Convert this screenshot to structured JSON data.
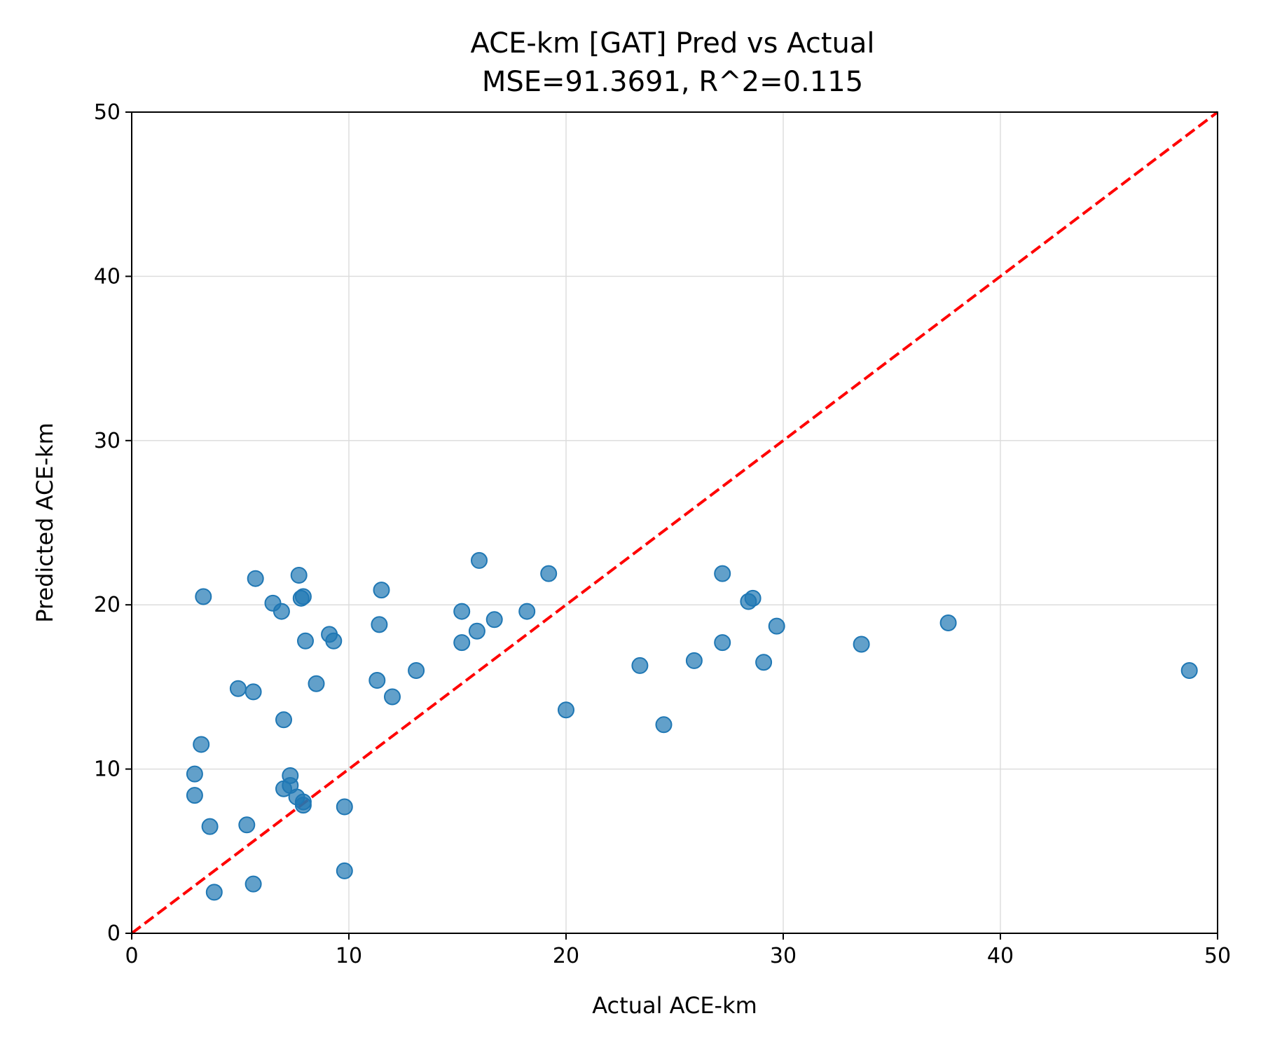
{
  "chart_data": {
    "type": "scatter",
    "title": "ACE-km [GAT] Pred vs Actual",
    "subtitle": "MSE=91.3691, R^2=0.115",
    "xlabel": "Actual ACE-km",
    "ylabel": "Predicted ACE-km",
    "xlim": [
      0,
      50
    ],
    "ylim": [
      0,
      50
    ],
    "xticks": [
      0,
      10,
      20,
      30,
      40,
      50
    ],
    "yticks": [
      0,
      10,
      20,
      30,
      40,
      50
    ],
    "grid": true,
    "point_color": "#1f77b4",
    "reference_line": {
      "from": [
        0,
        0
      ],
      "to": [
        50,
        50
      ],
      "color": "#ff0000",
      "style": "dashed"
    },
    "points": [
      {
        "x": 3.3,
        "y": 20.5
      },
      {
        "x": 5.7,
        "y": 21.6
      },
      {
        "x": 6.5,
        "y": 20.1
      },
      {
        "x": 6.9,
        "y": 19.6
      },
      {
        "x": 7.7,
        "y": 21.8
      },
      {
        "x": 7.8,
        "y": 20.4
      },
      {
        "x": 7.9,
        "y": 20.5
      },
      {
        "x": 8.0,
        "y": 17.8
      },
      {
        "x": 9.1,
        "y": 18.2
      },
      {
        "x": 9.3,
        "y": 17.8
      },
      {
        "x": 8.5,
        "y": 15.2
      },
      {
        "x": 4.9,
        "y": 14.9
      },
      {
        "x": 5.6,
        "y": 14.7
      },
      {
        "x": 7.0,
        "y": 13.0
      },
      {
        "x": 3.2,
        "y": 11.5
      },
      {
        "x": 2.9,
        "y": 9.7
      },
      {
        "x": 2.9,
        "y": 8.4
      },
      {
        "x": 3.6,
        "y": 6.5
      },
      {
        "x": 5.3,
        "y": 6.6
      },
      {
        "x": 7.0,
        "y": 8.8
      },
      {
        "x": 7.3,
        "y": 9.6
      },
      {
        "x": 7.3,
        "y": 9.0
      },
      {
        "x": 7.6,
        "y": 8.3
      },
      {
        "x": 7.9,
        "y": 8.0
      },
      {
        "x": 7.9,
        "y": 7.8
      },
      {
        "x": 9.8,
        "y": 7.7
      },
      {
        "x": 9.8,
        "y": 3.8
      },
      {
        "x": 5.6,
        "y": 3.0
      },
      {
        "x": 3.8,
        "y": 2.5
      },
      {
        "x": 11.5,
        "y": 20.9
      },
      {
        "x": 11.4,
        "y": 18.8
      },
      {
        "x": 11.3,
        "y": 15.4
      },
      {
        "x": 12.0,
        "y": 14.4
      },
      {
        "x": 13.1,
        "y": 16.0
      },
      {
        "x": 15.2,
        "y": 19.6
      },
      {
        "x": 15.2,
        "y": 17.7
      },
      {
        "x": 15.9,
        "y": 18.4
      },
      {
        "x": 16.0,
        "y": 22.7
      },
      {
        "x": 16.7,
        "y": 19.1
      },
      {
        "x": 18.2,
        "y": 19.6
      },
      {
        "x": 19.2,
        "y": 21.9
      },
      {
        "x": 20.0,
        "y": 13.6
      },
      {
        "x": 23.4,
        "y": 16.3
      },
      {
        "x": 24.5,
        "y": 12.7
      },
      {
        "x": 25.9,
        "y": 16.6
      },
      {
        "x": 27.2,
        "y": 21.9
      },
      {
        "x": 27.2,
        "y": 17.7
      },
      {
        "x": 28.4,
        "y": 20.2
      },
      {
        "x": 28.6,
        "y": 20.4
      },
      {
        "x": 29.1,
        "y": 16.5
      },
      {
        "x": 29.7,
        "y": 18.7
      },
      {
        "x": 33.6,
        "y": 17.6
      },
      {
        "x": 37.6,
        "y": 18.9
      },
      {
        "x": 48.7,
        "y": 16.0
      }
    ]
  }
}
